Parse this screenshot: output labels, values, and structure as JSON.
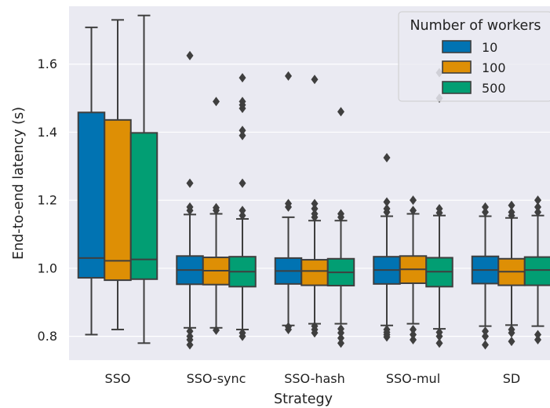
{
  "chart_data": {
    "type": "box",
    "xlabel": "Strategy",
    "ylabel": "End-to-end latency (s)",
    "categories": [
      "SSO",
      "SSO-sync",
      "SSO-hash",
      "SSO-mul",
      "SD"
    ],
    "ylim": [
      0.73,
      1.77
    ],
    "yticks": [
      0.8,
      1.0,
      1.2,
      1.4,
      1.6
    ],
    "ytick_labels": [
      "0.8",
      "1.0",
      "1.2",
      "1.4",
      "1.6"
    ],
    "grid": true,
    "background": "#eaeaf2",
    "legend": {
      "title": "Number of workers",
      "placement": "top-right",
      "entries": [
        "10",
        "100",
        "500"
      ]
    },
    "series": [
      {
        "color": "#0173b2",
        "boxes": [
          {
            "whislo": 0.805,
            "q1": 0.972,
            "med": 1.03,
            "q3": 1.458,
            "whishi": 1.708,
            "fliers": []
          },
          {
            "whislo": 0.825,
            "q1": 0.953,
            "med": 0.995,
            "q3": 1.036,
            "whishi": 1.158,
            "fliers": [
              0.775,
              0.79,
              0.8,
              0.815,
              1.17,
              1.18,
              1.25,
              1.625
            ]
          },
          {
            "whislo": 0.832,
            "q1": 0.954,
            "med": 0.992,
            "q3": 1.03,
            "whishi": 1.15,
            "fliers": [
              0.82,
              0.828,
              1.18,
              1.19,
              1.565
            ]
          },
          {
            "whislo": 0.832,
            "q1": 0.954,
            "med": 0.995,
            "q3": 1.034,
            "whishi": 1.153,
            "fliers": [
              0.798,
              0.805,
              0.812,
              0.82,
              1.165,
              1.175,
              1.195,
              1.325
            ]
          },
          {
            "whislo": 0.83,
            "q1": 0.955,
            "med": 0.995,
            "q3": 1.035,
            "whishi": 1.153,
            "fliers": [
              0.775,
              0.8,
              0.815,
              1.165,
              1.18
            ]
          }
        ]
      },
      {
        "color": "#de8f05",
        "boxes": [
          {
            "whislo": 0.82,
            "q1": 0.965,
            "med": 1.022,
            "q3": 1.436,
            "whishi": 1.73,
            "fliers": []
          },
          {
            "whislo": 0.825,
            "q1": 0.952,
            "med": 0.993,
            "q3": 1.032,
            "whishi": 1.16,
            "fliers": [
              0.818,
              1.17,
              1.178,
              1.49
            ]
          },
          {
            "whislo": 0.837,
            "q1": 0.95,
            "med": 0.992,
            "q3": 1.025,
            "whishi": 1.14,
            "fliers": [
              0.81,
              0.82,
              0.83,
              1.15,
              1.16,
              1.175,
              1.19,
              1.555
            ]
          },
          {
            "whislo": 0.837,
            "q1": 0.956,
            "med": 0.997,
            "q3": 1.036,
            "whishi": 1.16,
            "fliers": [
              0.79,
              0.805,
              0.82,
              1.17,
              1.2
            ]
          },
          {
            "whislo": 0.833,
            "q1": 0.95,
            "med": 0.99,
            "q3": 1.028,
            "whishi": 1.148,
            "fliers": [
              0.785,
              0.81,
              0.82,
              1.155,
              1.165,
              1.185
            ]
          }
        ]
      },
      {
        "color": "#029e73",
        "boxes": [
          {
            "whislo": 0.78,
            "q1": 0.968,
            "med": 1.026,
            "q3": 1.398,
            "whishi": 1.743,
            "fliers": []
          },
          {
            "whislo": 0.82,
            "q1": 0.946,
            "med": 0.99,
            "q3": 1.034,
            "whishi": 1.145,
            "fliers": [
              0.8,
              0.81,
              1.155,
              1.17,
              1.25,
              1.39,
              1.405,
              1.47,
              1.48,
              1.49,
              1.56
            ]
          },
          {
            "whislo": 0.837,
            "q1": 0.949,
            "med": 0.988,
            "q3": 1.028,
            "whishi": 1.14,
            "fliers": [
              0.78,
              0.795,
              0.81,
              0.822,
              1.15,
              1.16,
              1.46
            ]
          },
          {
            "whislo": 0.822,
            "q1": 0.946,
            "med": 0.99,
            "q3": 1.031,
            "whishi": 1.155,
            "fliers": [
              0.78,
              0.8,
              0.812,
              1.163,
              1.175,
              1.5,
              1.575
            ]
          },
          {
            "whislo": 0.83,
            "q1": 0.95,
            "med": 0.995,
            "q3": 1.033,
            "whishi": 1.155,
            "fliers": [
              0.79,
              0.805,
              1.165,
              1.18,
              1.2
            ]
          }
        ]
      }
    ]
  }
}
